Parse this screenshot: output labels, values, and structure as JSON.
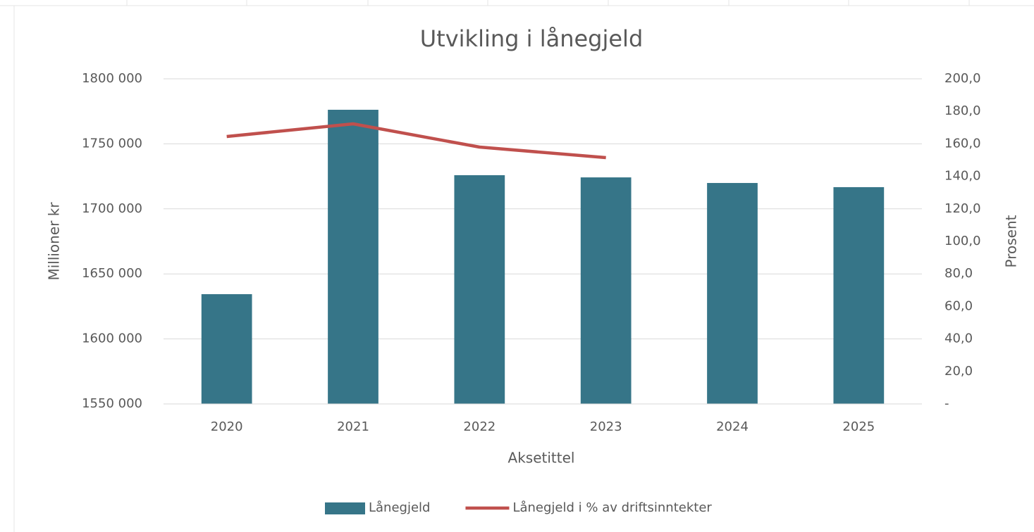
{
  "chart_data": {
    "type": "bar_line",
    "title": "Utvikling i lånegjeld",
    "x_label": "Aksetittel",
    "y_label": "Millioner kr",
    "y2_label": "Prosent",
    "categories": [
      "2020",
      "2021",
      "2022",
      "2023",
      "2024",
      "2025"
    ],
    "series": [
      {
        "name": "Lånegjeld",
        "type": "bar",
        "color": "#367588",
        "values": [
          1634400,
          1776200,
          1725900,
          1724200,
          1719900,
          1716700
        ]
      },
      {
        "name": "Lånegjeld i % av driftsinntekter",
        "type": "line",
        "axis": "y2",
        "color": "#c0504d",
        "values": [
          164.5,
          172.3,
          158.0,
          151.5,
          null,
          null
        ]
      }
    ],
    "ylim": [
      1550000,
      1800000
    ],
    "yticks": [
      {
        "value": 1550000,
        "label": "1550 000"
      },
      {
        "value": 1600000,
        "label": "1600 000"
      },
      {
        "value": 1650000,
        "label": "1650 000"
      },
      {
        "value": 1700000,
        "label": "1700 000"
      },
      {
        "value": 1750000,
        "label": "1750 000"
      },
      {
        "value": 1800000,
        "label": "1800 000"
      }
    ],
    "y2lim": [
      0,
      200
    ],
    "y2ticks": [
      {
        "value": 0,
        "label": "-"
      },
      {
        "value": 20,
        "label": "20,0"
      },
      {
        "value": 40,
        "label": "40,0"
      },
      {
        "value": 60,
        "label": "60,0"
      },
      {
        "value": 80,
        "label": "80,0"
      },
      {
        "value": 100,
        "label": "100,0"
      },
      {
        "value": 120,
        "label": "120,0"
      },
      {
        "value": 140,
        "label": "140,0"
      },
      {
        "value": 160,
        "label": "160,0"
      },
      {
        "value": 180,
        "label": "180,0"
      },
      {
        "value": 200,
        "label": "200,0"
      }
    ],
    "grid": true,
    "legend": "bottom"
  }
}
